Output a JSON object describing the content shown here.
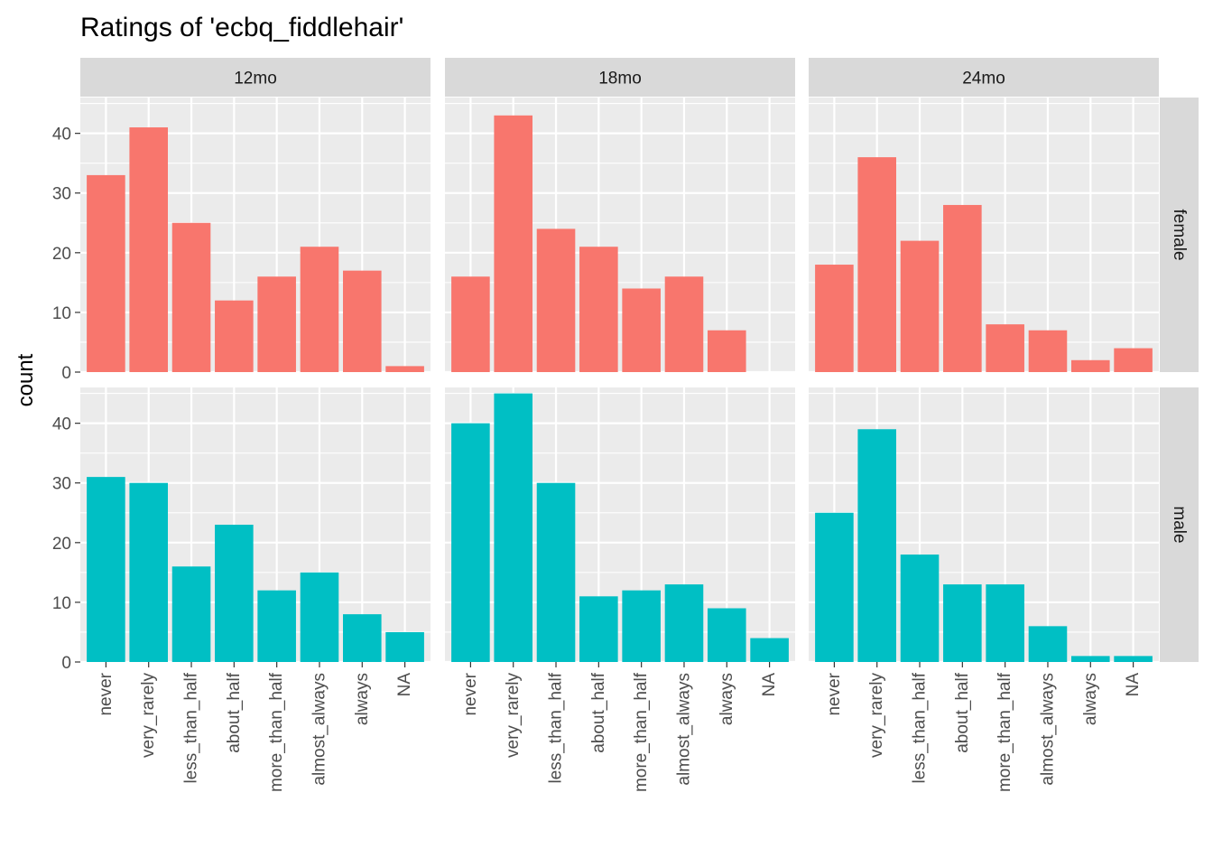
{
  "chart_data": {
    "type": "bar",
    "title": "Ratings of 'ecbq_fiddlehair'",
    "ylabel": "count",
    "xlabel": "",
    "ylim": [
      0,
      46
    ],
    "y_ticks": [
      0,
      10,
      20,
      30,
      40
    ],
    "grid": true,
    "categories": [
      "never",
      "very_rarely",
      "less_than_half",
      "about_half",
      "more_than_half",
      "almost_always",
      "always",
      "NA"
    ],
    "facet_columns": [
      "12mo",
      "18mo",
      "24mo"
    ],
    "facet_rows": [
      "female",
      "male"
    ],
    "colors": {
      "female": "#F8766D",
      "male": "#00BFC4",
      "panel_bg": "#EBEBEB",
      "strip_bg": "#D9D9D9",
      "grid": "#FFFFFF"
    },
    "panels": [
      {
        "column": "12mo",
        "row": "female",
        "values": [
          33,
          41,
          25,
          12,
          16,
          21,
          17,
          1
        ]
      },
      {
        "column": "18mo",
        "row": "female",
        "values": [
          16,
          43,
          24,
          21,
          14,
          16,
          7,
          0
        ]
      },
      {
        "column": "24mo",
        "row": "female",
        "values": [
          18,
          36,
          22,
          28,
          8,
          7,
          2,
          4
        ]
      },
      {
        "column": "12mo",
        "row": "male",
        "values": [
          31,
          30,
          16,
          23,
          12,
          15,
          8,
          5
        ]
      },
      {
        "column": "18mo",
        "row": "male",
        "values": [
          40,
          45,
          30,
          11,
          12,
          13,
          9,
          4
        ]
      },
      {
        "column": "24mo",
        "row": "male",
        "values": [
          25,
          39,
          18,
          13,
          13,
          6,
          1,
          1
        ]
      }
    ]
  }
}
